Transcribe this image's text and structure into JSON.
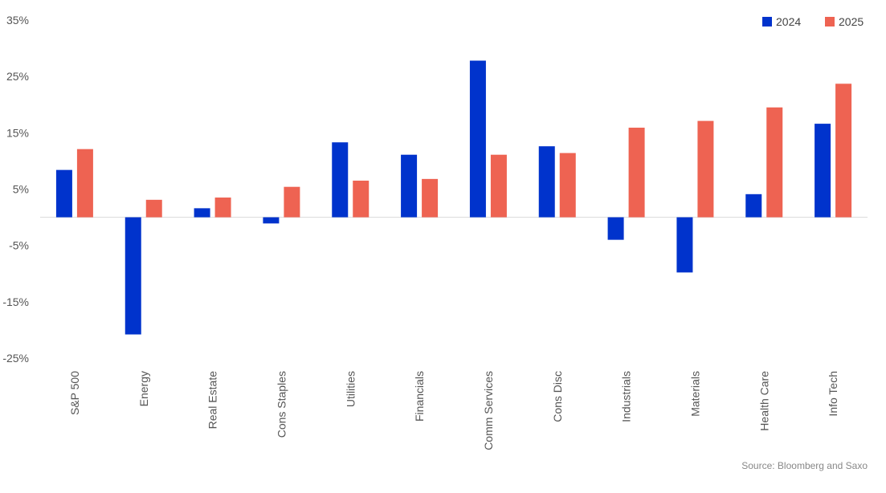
{
  "chart_data": {
    "type": "bar",
    "categories": [
      "S&P 500",
      "Energy",
      "Real Estate",
      "Cons Staples",
      "Utilities",
      "Financials",
      "Comm Services",
      "Cons Disc",
      "Industrials",
      "Materials",
      "Health Care",
      "Info Tech"
    ],
    "series": [
      {
        "name": "2024",
        "color": "#0033cc",
        "values": [
          8.4,
          -20.8,
          1.6,
          -1.1,
          13.3,
          11.1,
          27.8,
          12.6,
          -4.0,
          -9.8,
          4.1,
          16.6
        ]
      },
      {
        "name": "2025",
        "color": "#ee6352",
        "values": [
          12.1,
          3.1,
          3.5,
          5.4,
          6.5,
          6.8,
          11.1,
          11.4,
          15.9,
          17.1,
          19.5,
          23.7
        ]
      }
    ],
    "yticks": [
      35,
      25,
      15,
      5,
      -5,
      -15,
      -25
    ],
    "ytick_labels": [
      "35%",
      "25%",
      "15%",
      "5%",
      "-5%",
      "-15%",
      "-25%"
    ],
    "ylim": [
      -25,
      35
    ],
    "title": "",
    "xlabel": "",
    "ylabel": "",
    "legend_position": "top-right",
    "grid": false,
    "source": "Source: Bloomberg and Saxo"
  }
}
